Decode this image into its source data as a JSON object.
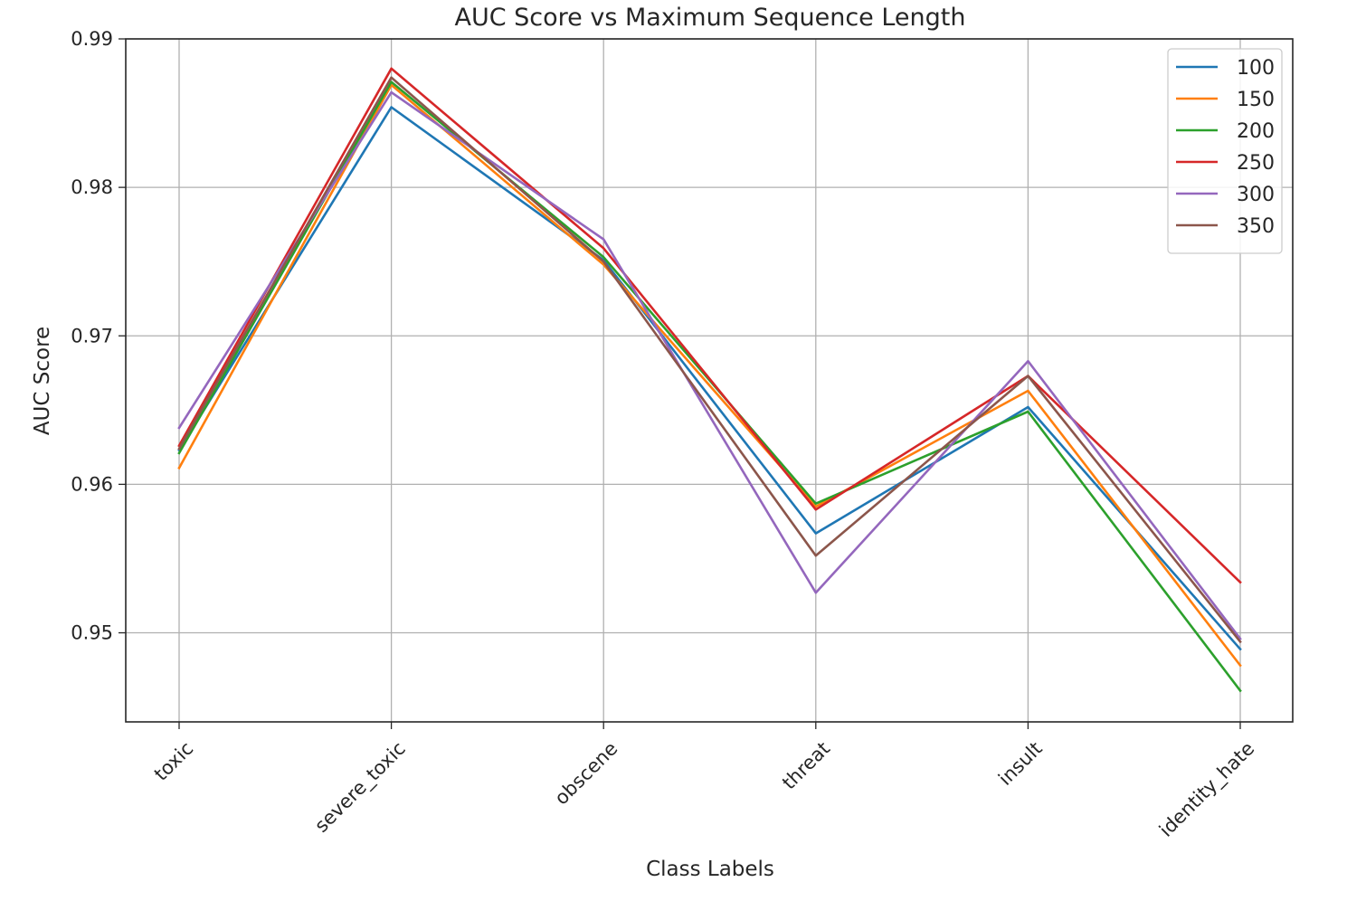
{
  "chart_data": {
    "type": "line",
    "title": "AUC Score vs Maximum Sequence Length",
    "xlabel": "Class Labels",
    "ylabel": "AUC Score",
    "categories": [
      "toxic",
      "severe_toxic",
      "obscene",
      "threat",
      "insult",
      "identity_hate"
    ],
    "ylim": [
      0.944,
      0.99
    ],
    "yticks": [
      "0.95",
      "0.96",
      "0.97",
      "0.98",
      "0.99"
    ],
    "grid": true,
    "legend_position": "top-right",
    "series": [
      {
        "name": "100",
        "color": "#1f77b4",
        "values": [
          0.9623,
          0.9854,
          0.9751,
          0.9567,
          0.9652,
          0.9489
        ]
      },
      {
        "name": "150",
        "color": "#ff7f0e",
        "values": [
          0.9611,
          0.9869,
          0.9748,
          0.9585,
          0.9663,
          0.9478
        ]
      },
      {
        "name": "200",
        "color": "#2ca02c",
        "values": [
          0.9621,
          0.9871,
          0.9753,
          0.9587,
          0.9649,
          0.9461
        ]
      },
      {
        "name": "250",
        "color": "#d62728",
        "values": [
          0.9626,
          0.988,
          0.9759,
          0.9583,
          0.9673,
          0.9534
        ]
      },
      {
        "name": "300",
        "color": "#9467bd",
        "values": [
          0.9638,
          0.9864,
          0.9765,
          0.9527,
          0.9683,
          0.9496
        ]
      },
      {
        "name": "350",
        "color": "#8c564b",
        "values": [
          0.9624,
          0.9874,
          0.975,
          0.9552,
          0.9673,
          0.9494
        ]
      }
    ]
  }
}
